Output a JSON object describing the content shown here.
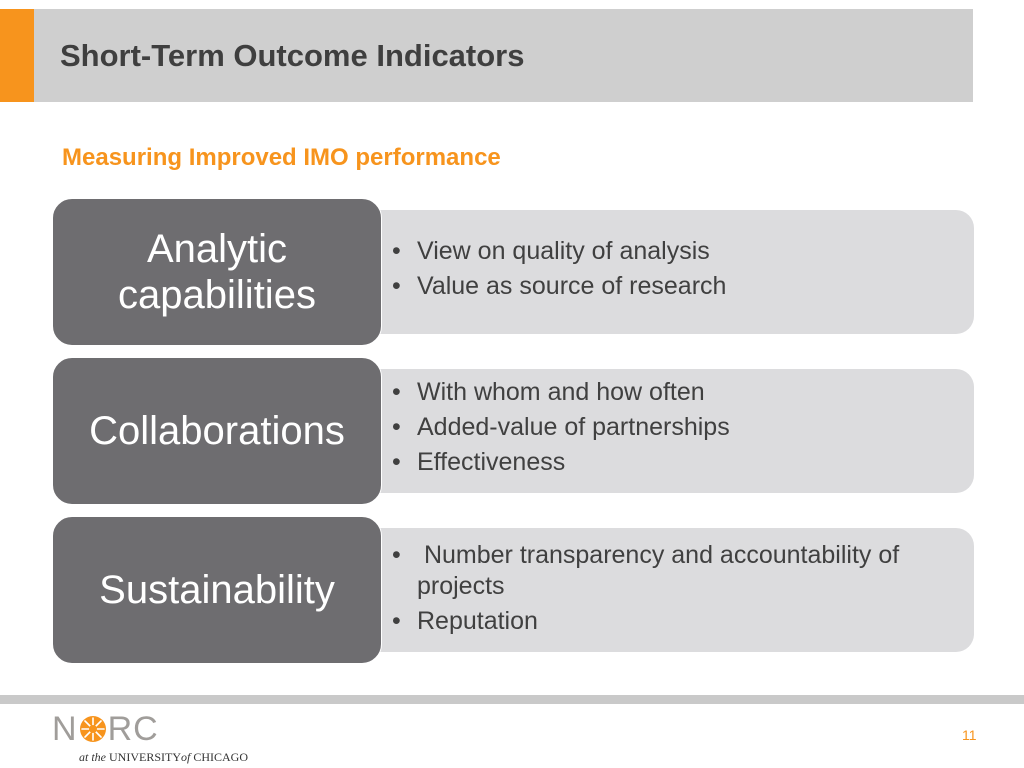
{
  "slide": {
    "title": "Short-Term Outcome Indicators",
    "subtitle": "Measuring Improved IMO performance",
    "rows": [
      {
        "heading_lines": [
          "Analytic",
          "capabilities"
        ],
        "bullets": [
          "View on quality of analysis",
          "Value as source of research"
        ]
      },
      {
        "heading_lines": [
          "Collaborations"
        ],
        "bullets": [
          "With whom and how often",
          "Added-value of partnerships",
          "Effectiveness"
        ]
      },
      {
        "heading_lines": [
          "Sustainability"
        ],
        "bullets": [
          " Number transparency and accountability of projects",
          "Reputation"
        ]
      }
    ],
    "page_number": "11"
  },
  "logo": {
    "n": "N",
    "rc": "RC",
    "sub_prefix": "at the",
    "sub_university": "UNIVERSITY",
    "sub_of": "of",
    "sub_city": "CHICAGO"
  },
  "colors": {
    "accent_orange": "#f7941d",
    "title_bar_gray": "#cfcfcf",
    "box_dark": "#6e6d70",
    "box_light": "#dcdcde",
    "text_dark": "#404040"
  },
  "icons": {
    "bullet": "bullet-dot-icon",
    "logo_mark": "sunburst-icon"
  }
}
